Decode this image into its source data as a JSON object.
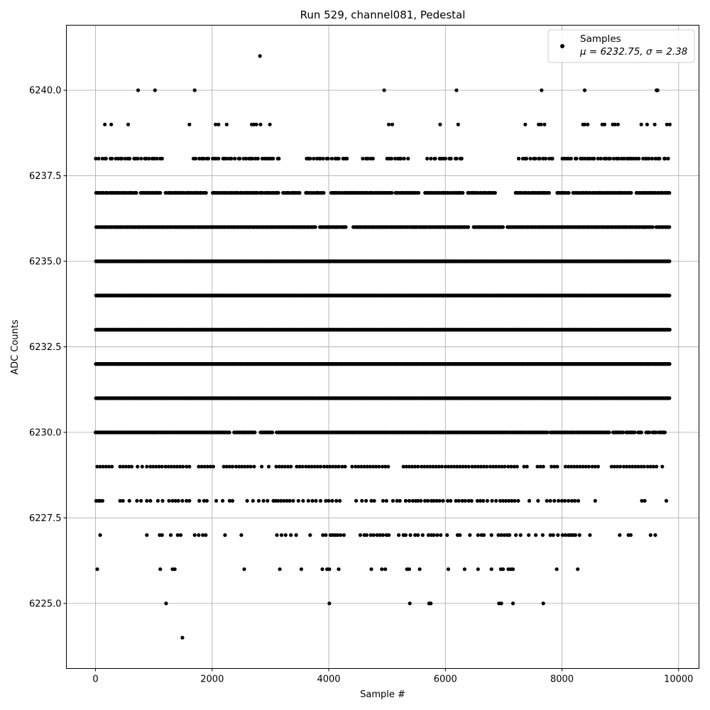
{
  "chart_data": {
    "type": "scatter",
    "title": "Run 529, channel081, Pedestal",
    "xlabel": "Sample #",
    "ylabel": "ADC Counts",
    "xlim": [
      -500,
      10350
    ],
    "ylim": [
      6223.1,
      6241.9
    ],
    "x_ticks": [
      0,
      2000,
      4000,
      6000,
      8000,
      10000
    ],
    "x_tick_labels": [
      "0",
      "2000",
      "4000",
      "6000",
      "8000",
      "10000"
    ],
    "y_ticks": [
      6225.0,
      6227.5,
      6230.0,
      6232.5,
      6235.0,
      6237.5,
      6240.0
    ],
    "y_tick_labels": [
      "6225.0",
      "6227.5",
      "6230.0",
      "6232.5",
      "6235.0",
      "6237.5",
      "6240.0"
    ],
    "grid": true,
    "legend_position": "top-right",
    "marker_color": "#000000",
    "series": [
      {
        "name": "Samples",
        "stats_label": "μ = 6232.75, σ = 2.38",
        "x_range": [
          0,
          9850
        ],
        "levels": [
          {
            "y": 6241,
            "x": [
              2820
            ]
          },
          {
            "y": 6240,
            "x": [
              730,
              1020,
              1700,
              4950,
              6190,
              7650,
              8390,
              9620,
              9630,
              9640
            ]
          },
          {
            "y": 6239,
            "x": [
              160,
              270,
              560,
              1610,
              2060,
              2110,
              2250,
              2680,
              2720,
              2760,
              2830,
              2990,
              5030,
              5090,
              5910,
              6220,
              7370,
              7600,
              7640,
              7700,
              8360,
              8390,
              8440,
              8690,
              8730,
              8870,
              8910,
              8960,
              9360,
              9460,
              9590,
              9800,
              9850
            ]
          },
          {
            "y": 6224,
            "x": [
              1490
            ]
          },
          {
            "y": 6225,
            "x": [
              1210,
              4010,
              5390,
              5720,
              5750,
              6920,
              6960,
              7160,
              7680
            ]
          },
          {
            "y": 6226,
            "x": [
              30,
              1110,
              1320,
              1360,
              2550,
              3160,
              3530,
              3890,
              3970,
              4010,
              4170,
              4730,
              4910,
              4970,
              5340,
              5380,
              5560,
              6050,
              6330,
              6560,
              6790,
              6950,
              6990,
              7080,
              7120,
              7160,
              7910,
              8270
            ]
          },
          {
            "y": 6227,
            "x": [
              80,
              880,
              1100,
              1140,
              1290,
              1410,
              1460,
              1700,
              1770,
              1840,
              1890,
              2220,
              2500,
              3110,
              3190,
              3260,
              3350,
              3440,
              3680,
              3900,
              3950,
              4030,
              4070,
              4110,
              4150,
              4200,
              4260,
              4540,
              4610,
              4650,
              4720,
              4770,
              4830,
              4880,
              4930,
              4990,
              5030,
              5200,
              5280,
              5320,
              5400,
              5480,
              5530,
              5610,
              5710,
              5760,
              5800,
              5860,
              5920,
              6030,
              6210,
              6250,
              6420,
              6560,
              6620,
              6660,
              6790,
              6910,
              6960,
              7010,
              7060,
              7100,
              7210,
              7290,
              7430,
              7550,
              7670,
              7800,
              7850,
              7930,
              8010,
              8060,
              8110,
              8150,
              8190,
              8230,
              8300,
              8480,
              8990,
              9140,
              9180,
              9520,
              9600
            ]
          },
          {
            "y": 6228,
            "x": [
              10,
              50,
              80,
              120,
              420,
              470,
              580,
              710,
              780,
              880,
              940,
              1070,
              1150,
              1260,
              1320,
              1370,
              1420,
              1490,
              1560,
              1610,
              1780,
              1860,
              1910,
              2070,
              2180,
              2300,
              2350,
              2600,
              2700,
              2800,
              2880,
              2950,
              3050,
              3090,
              3130,
              3180,
              3230,
              3280,
              3330,
              3390,
              3480,
              3560,
              3650,
              3720,
              3780,
              3860,
              3950,
              4000,
              4060,
              4130,
              4190,
              4470,
              4570,
              4640,
              4730,
              4780,
              4930,
              4990,
              5100,
              5170,
              5220,
              5320,
              5380,
              5440,
              5490,
              5530,
              5580,
              5650,
              5700,
              5760,
              5800,
              5850,
              5900,
              5960,
              6040,
              6090,
              6180,
              6230,
              6290,
              6340,
              6400,
              6450,
              6550,
              6600,
              6650,
              6720,
              6800,
              6870,
              6940,
              6990,
              7040,
              7090,
              7140,
              7190,
              7250,
              7440,
              7590,
              7740,
              7800,
              7870,
              7940,
              8000,
              8050,
              8110,
              8170,
              8220,
              8280,
              8570,
              9370,
              9420,
              9790
            ]
          },
          {
            "y": 6229,
            "x": [
              30,
              80,
              130,
              180,
              230,
              280,
              420,
              470,
              520,
              570,
              620,
              720,
              800,
              880,
              940,
              990,
              1040,
              1090,
              1140,
              1200,
              1250,
              1300,
              1350,
              1400,
              1450,
              1500,
              1560,
              1610,
              1770,
              1820,
              1870,
              1920,
              1970,
              2020,
              2200,
              2250,
              2300,
              2350,
              2410,
              2460,
              2510,
              2560,
              2610,
              2660,
              2720,
              2850,
              2970,
              3100,
              3150,
              3200,
              3250,
              3300,
              3350,
              3450,
              3500,
              3550,
              3610,
              3660,
              3710,
              3760,
              3810,
              3860,
              3920,
              3970,
              4020,
              4070,
              4120,
              4170,
              4230,
              4280,
              4400,
              4460,
              4510,
              4560,
              4610,
              4660,
              4710,
              4760,
              4810,
              4860,
              4920,
              4970,
              5020,
              5280,
              5330,
              5380,
              5430,
              5480,
              5530,
              5590,
              5640,
              5690,
              5740,
              5790,
              5840,
              5890,
              5940,
              6000,
              6050,
              6100,
              6150,
              6200,
              6250,
              6300,
              6350,
              6400,
              6460,
              6510,
              6560,
              6610,
              6660,
              6710,
              6770,
              6820,
              6870,
              6920,
              6970,
              7020,
              7080,
              7130,
              7180,
              7230,
              7350,
              7400,
              7580,
              7630,
              7680,
              7820,
              7870,
              7920,
              8060,
              8110,
              8160,
              8210,
              8260,
              8310,
              8360,
              8410,
              8460,
              8520,
              8570,
              8620,
              8850,
              8900,
              8950,
              9000,
              9060,
              9110,
              9160,
              9210,
              9260,
              9310,
              9360,
              9410,
              9470,
              9520,
              9570,
              9620,
              9720
            ]
          }
        ],
        "dense_levels": [
          {
            "y": 6230,
            "n": 520,
            "gaps": [
              [
                2300,
                2370
              ],
              [
                2750,
                2820
              ],
              [
                3050,
                3100
              ],
              [
                7780,
                7800
              ],
              [
                8690,
                8700
              ],
              [
                8820,
                8850
              ],
              [
                9050,
                9080
              ],
              [
                9260,
                9300
              ],
              [
                9380,
                9420
              ],
              [
                9500,
                9540
              ],
              [
                9620,
                9660
              ],
              [
                9780,
                9850
              ]
            ],
            "x_max": 9850
          },
          {
            "y": 6231,
            "n": 760,
            "gaps": [],
            "x_max": 9850
          },
          {
            "y": 6232,
            "n": 780,
            "gaps": [],
            "x_max": 9850
          },
          {
            "y": 6233,
            "n": 860,
            "gaps": [],
            "x_max": 9850
          },
          {
            "y": 6234,
            "n": 860,
            "gaps": [],
            "x_max": 9850
          },
          {
            "y": 6235,
            "n": 820,
            "gaps": [],
            "x_max": 9850
          },
          {
            "y": 6236,
            "n": 560,
            "gaps": [
              [
                3780,
                3840
              ],
              [
                4300,
                4420
              ],
              [
                6400,
                6480
              ],
              [
                7000,
                7060
              ],
              [
                9560,
                9600
              ]
            ],
            "x_max": 9850
          },
          {
            "y": 6237,
            "n": 440,
            "gaps": [
              [
                700,
                760
              ],
              [
                1120,
                1200
              ],
              [
                1900,
                2000
              ],
              [
                3160,
                3200
              ],
              [
                3520,
                3600
              ],
              [
                3930,
                4020
              ],
              [
                5100,
                5140
              ],
              [
                5560,
                5640
              ],
              [
                6300,
                6360
              ],
              [
                6870,
                7180
              ],
              [
                7780,
                7900
              ],
              [
                8120,
                8190
              ],
              [
                9200,
                9260
              ]
            ],
            "x_max": 9850
          },
          {
            "y": 6238,
            "n": 220,
            "gaps": [
              [
                1150,
                1650
              ],
              [
                3200,
                3620
              ],
              [
                4320,
                4540
              ],
              [
                4800,
                5000
              ],
              [
                5400,
                5680
              ],
              [
                6300,
                7250
              ],
              [
                7900,
                8000
              ]
            ],
            "x_max": 9850
          }
        ]
      }
    ]
  }
}
